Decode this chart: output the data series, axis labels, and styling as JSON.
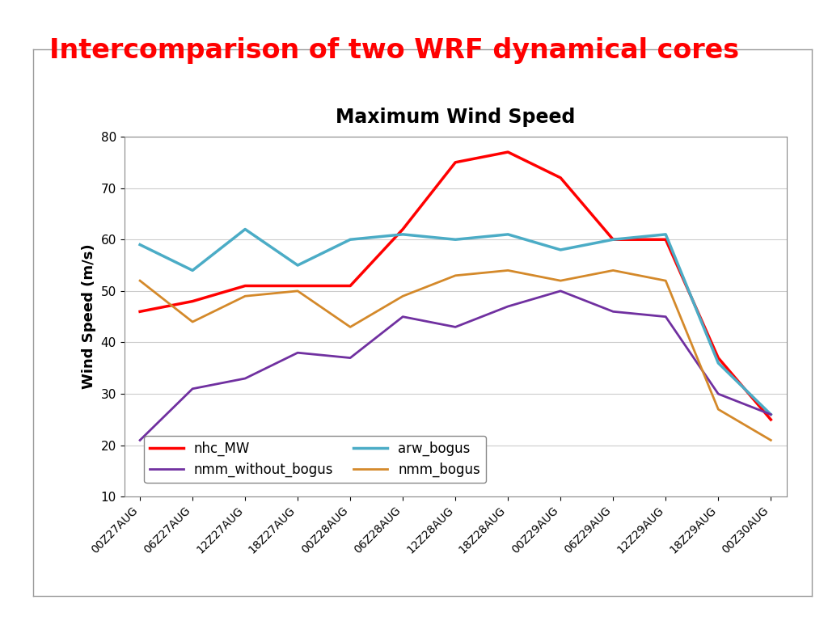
{
  "title": "Intercomparison of two WRF dynamical cores",
  "chart_title": "Maximum Wind Speed",
  "ylabel": "Wind Speed (m/s)",
  "x_labels": [
    "00Z27AUG",
    "06Z27AUG",
    "12Z27AUG",
    "18Z27AUG",
    "00Z28AUG",
    "06Z28AUG",
    "12Z28AUG",
    "18Z28AUG",
    "00Z29AUG",
    "06Z29AUG",
    "12Z29AUG",
    "18Z29AUG",
    "00Z30AUG"
  ],
  "ylim": [
    10,
    80
  ],
  "yticks": [
    10,
    20,
    30,
    40,
    50,
    60,
    70,
    80
  ],
  "series": {
    "nhc_MW": {
      "values": [
        46,
        48,
        51,
        51,
        51,
        62,
        75,
        77,
        72,
        60,
        60,
        37,
        25
      ],
      "color": "#FF0000",
      "linewidth": 2.5
    },
    "arw_bogus": {
      "values": [
        59,
        54,
        62,
        55,
        60,
        61,
        60,
        61,
        58,
        60,
        61,
        36,
        26
      ],
      "color": "#4BACC6",
      "linewidth": 2.5
    },
    "nmm_without_bogus": {
      "values": [
        21,
        31,
        33,
        38,
        37,
        45,
        43,
        47,
        50,
        46,
        45,
        30,
        26
      ],
      "color": "#7030A0",
      "linewidth": 2.0
    },
    "nmm_bogus": {
      "values": [
        52,
        44,
        49,
        50,
        43,
        49,
        53,
        54,
        52,
        54,
        52,
        27,
        21
      ],
      "color": "#D4892A",
      "linewidth": 2.0
    }
  },
  "title_color": "#FF0000",
  "title_fontsize": 24,
  "chart_title_fontsize": 17,
  "background_color": "#FFFFFF",
  "plot_bg_color": "#FFFFFF",
  "legend_order": [
    "nhc_MW",
    "nmm_without_bogus",
    "arw_bogus",
    "nmm_bogus"
  ],
  "legend_fontsize": 12,
  "outer_border_color": "#C0C0C0"
}
